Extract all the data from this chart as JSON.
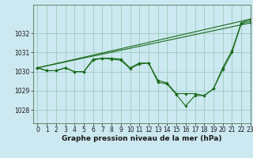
{
  "title": "Graphe pression niveau de la mer (hPa)",
  "background_color": "#cce8f0",
  "grid_color": "#99ccbb",
  "line_color": "#1a6b1a",
  "xlim": [
    -0.5,
    23
  ],
  "ylim": [
    1027.3,
    1033.5
  ],
  "yticks": [
    1028,
    1029,
    1030,
    1031,
    1032
  ],
  "xticks": [
    0,
    1,
    2,
    3,
    4,
    5,
    6,
    7,
    8,
    9,
    10,
    11,
    12,
    13,
    14,
    15,
    16,
    17,
    18,
    19,
    20,
    21,
    22,
    23
  ],
  "series": [
    [
      1030.2,
      1030.05,
      1030.05,
      1030.2,
      1030.0,
      1030.0,
      1030.65,
      1030.7,
      1030.7,
      1030.65,
      1030.2,
      1030.45,
      1030.45,
      1029.55,
      1029.4,
      1028.85,
      1028.85,
      1028.85,
      1028.75,
      1029.1,
      1030.2,
      1031.1,
      1032.55,
      1032.75
    ],
    [
      1030.2,
      1030.05,
      1030.05,
      1030.2,
      1030.0,
      1030.0,
      1030.6,
      1030.7,
      1030.65,
      1030.6,
      1030.15,
      1030.4,
      1030.45,
      1029.45,
      1029.35,
      1028.8,
      1028.2,
      1028.75,
      1028.75,
      1029.1,
      1030.1,
      1031.0,
      1032.5,
      1032.65
    ],
    [
      1030.2,
      1032.75
    ],
    [
      1030.2,
      1032.55
    ]
  ],
  "series_x": [
    [
      0,
      1,
      2,
      3,
      4,
      5,
      6,
      7,
      8,
      9,
      10,
      11,
      12,
      13,
      14,
      15,
      16,
      17,
      18,
      19,
      20,
      21,
      22,
      23
    ],
    [
      0,
      1,
      2,
      3,
      4,
      5,
      6,
      7,
      8,
      9,
      10,
      11,
      12,
      13,
      14,
      15,
      16,
      17,
      18,
      19,
      20,
      21,
      22,
      23
    ],
    [
      0,
      23
    ],
    [
      0,
      23
    ]
  ],
  "title_fontsize": 6.5,
  "tick_fontsize": 5.5
}
